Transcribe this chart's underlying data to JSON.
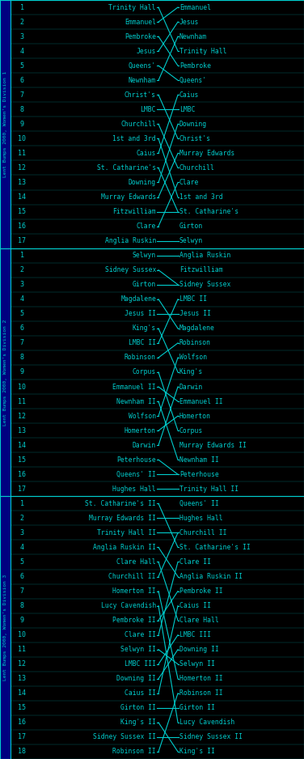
{
  "bg_color": "#000000",
  "line_color": "#00cccc",
  "text_color": "#00cccc",
  "sidebar_bg": "#000080",
  "divisions": [
    {
      "label": "Lent Bumps 2000, Women's Division 1",
      "left_names": [
        "Trinity Hall",
        "Emmanuel",
        "Pembroke",
        "Jesus",
        "Queens'",
        "Newnham",
        "Christ's",
        "LMBC",
        "Churchill",
        "1st and 3rd",
        "Caius",
        "St. Catharine's",
        "Downing",
        "Murray Edwards",
        "Fitzwilliam",
        "Clare",
        "Anglia Ruskin"
      ],
      "right_names": [
        "Emmanuel",
        "Jesus",
        "Newnham",
        "Trinity Hall",
        "Pembroke",
        "Queens'",
        "Caius",
        "LMBC",
        "Downing",
        "Christ's",
        "Murray Edwards",
        "Churchill",
        "Clare",
        "1st and 3rd",
        "St. Catharine's",
        "Girton",
        "Selwyn"
      ]
    },
    {
      "label": "Lent Bumps 2000, Women's Division 2",
      "left_names": [
        "Selwyn",
        "Sidney Sussex",
        "Girton",
        "Magdalene",
        "Jesus II",
        "King's",
        "LMBC II",
        "Robinson",
        "Corpus",
        "Emmanuel II",
        "Newnham II",
        "Wolfson",
        "Homerton",
        "Darwin",
        "Peterhouse",
        "Queens' II",
        "Hughes Hall"
      ],
      "right_names": [
        "Anglia Ruskin",
        "Fitzwilliam",
        "Sidney Sussex",
        "LMBC II",
        "Jesus II",
        "Magdalene",
        "Robinson",
        "Wolfson",
        "King's",
        "Darwin",
        "Emmanuel II",
        "Homerton",
        "Corpus",
        "Murray Edwards II",
        "Newnham II",
        "Peterhouse",
        "Trinity Hall II"
      ]
    },
    {
      "label": "Lent Bumps 2000, Women's Division 3",
      "left_names": [
        "St. Catharine's II",
        "Murray Edwards II",
        "Trinity Hall II",
        "Anglia Ruskin II",
        "Clare Hall",
        "Churchill II",
        "Homerton II",
        "Lucy Cavendish",
        "Pembroke II",
        "Clare II",
        "Selwyn II",
        "LMBC III",
        "Downing II",
        "Caius II",
        "Girton II",
        "King's II",
        "Sidney Sussex II",
        "Robinson II"
      ],
      "right_names": [
        "Queens' II",
        "Hughes Hall",
        "Churchill II",
        "St. Catharine's II",
        "Clare II",
        "Anglia Ruskin II",
        "Pembroke II",
        "Caius II",
        "Clare Hall",
        "LMBC III",
        "Downing II",
        "Selwyn II",
        "Homerton II",
        "Robinson II",
        "Girton II",
        "Lucy Cavendish",
        "Sidney Sussex II",
        "King's II"
      ]
    }
  ]
}
